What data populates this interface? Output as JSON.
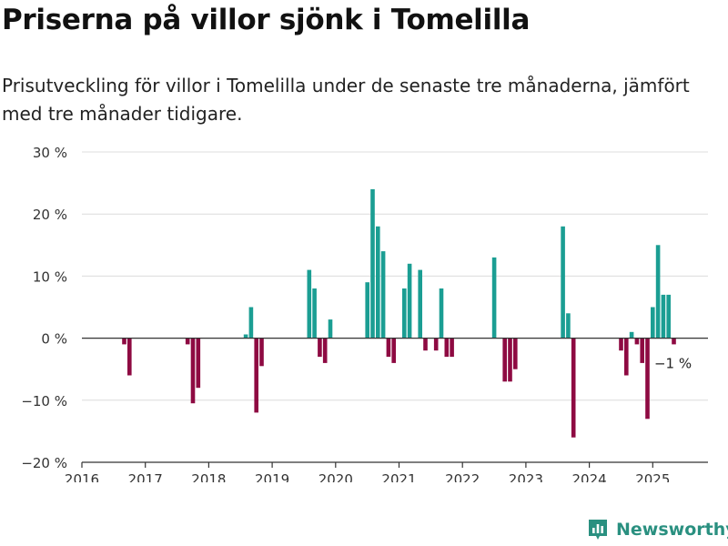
{
  "header": {
    "title": "Priserna på villor sjönk i Tomelilla",
    "subtitle": "Prisutveckling för villor i Tomelilla under de senaste tre månaderna, jämfört med tre månader tidigare."
  },
  "brand": {
    "name": "Newsworthy",
    "icon": "bar-chart-logo-icon",
    "color": "#2a9080"
  },
  "chart_data": {
    "type": "bar",
    "x_type": "date",
    "ylim": [
      -20,
      30
    ],
    "xlim": [
      "2016-01",
      "2025-12"
    ],
    "yticks": [
      -20,
      -10,
      0,
      10,
      20,
      30
    ],
    "ytick_labels": [
      "−20 %",
      "−10 %",
      "0 %",
      "10 %",
      "20 %",
      "30 %"
    ],
    "xticks": [
      "2016",
      "2017",
      "2018",
      "2019",
      "2020",
      "2021",
      "2022",
      "2023",
      "2024",
      "2025"
    ],
    "grid": true,
    "colors": {
      "positive": "#1b9e93",
      "negative": "#8e0a42"
    },
    "annotation": {
      "text": "−1 %",
      "x": "2025-05",
      "y": -1
    },
    "points": [
      {
        "x": "2016-09",
        "y": -1
      },
      {
        "x": "2016-10",
        "y": -6
      },
      {
        "x": "2017-09",
        "y": -1
      },
      {
        "x": "2017-10",
        "y": -10.5
      },
      {
        "x": "2017-11",
        "y": -8
      },
      {
        "x": "2018-08",
        "y": 0.6
      },
      {
        "x": "2018-09",
        "y": 5
      },
      {
        "x": "2018-10",
        "y": -12
      },
      {
        "x": "2018-11",
        "y": -4.5
      },
      {
        "x": "2019-08",
        "y": 11
      },
      {
        "x": "2019-09",
        "y": 8
      },
      {
        "x": "2019-10",
        "y": -3
      },
      {
        "x": "2019-11",
        "y": -4
      },
      {
        "x": "2019-12",
        "y": 3
      },
      {
        "x": "2020-07",
        "y": 9
      },
      {
        "x": "2020-08",
        "y": 24
      },
      {
        "x": "2020-09",
        "y": 18
      },
      {
        "x": "2020-10",
        "y": 14
      },
      {
        "x": "2020-11",
        "y": -3
      },
      {
        "x": "2020-12",
        "y": -4
      },
      {
        "x": "2021-02",
        "y": 8
      },
      {
        "x": "2021-03",
        "y": 12
      },
      {
        "x": "2021-05",
        "y": 11
      },
      {
        "x": "2021-06",
        "y": -2
      },
      {
        "x": "2021-08",
        "y": -2
      },
      {
        "x": "2021-09",
        "y": 8
      },
      {
        "x": "2021-10",
        "y": -3
      },
      {
        "x": "2021-11",
        "y": -3
      },
      {
        "x": "2022-07",
        "y": 13
      },
      {
        "x": "2022-08",
        "y": 0
      },
      {
        "x": "2022-09",
        "y": -7
      },
      {
        "x": "2022-10",
        "y": -7
      },
      {
        "x": "2022-11",
        "y": -5
      },
      {
        "x": "2023-08",
        "y": 18
      },
      {
        "x": "2023-09",
        "y": 4
      },
      {
        "x": "2023-10",
        "y": -16
      },
      {
        "x": "2024-07",
        "y": -2
      },
      {
        "x": "2024-08",
        "y": -6
      },
      {
        "x": "2024-09",
        "y": 1
      },
      {
        "x": "2024-10",
        "y": -1
      },
      {
        "x": "2024-11",
        "y": -4
      },
      {
        "x": "2024-12",
        "y": -13
      },
      {
        "x": "2025-01",
        "y": 5
      },
      {
        "x": "2025-02",
        "y": 15
      },
      {
        "x": "2025-03",
        "y": 7
      },
      {
        "x": "2025-04",
        "y": 7
      },
      {
        "x": "2025-05",
        "y": -1
      }
    ]
  }
}
